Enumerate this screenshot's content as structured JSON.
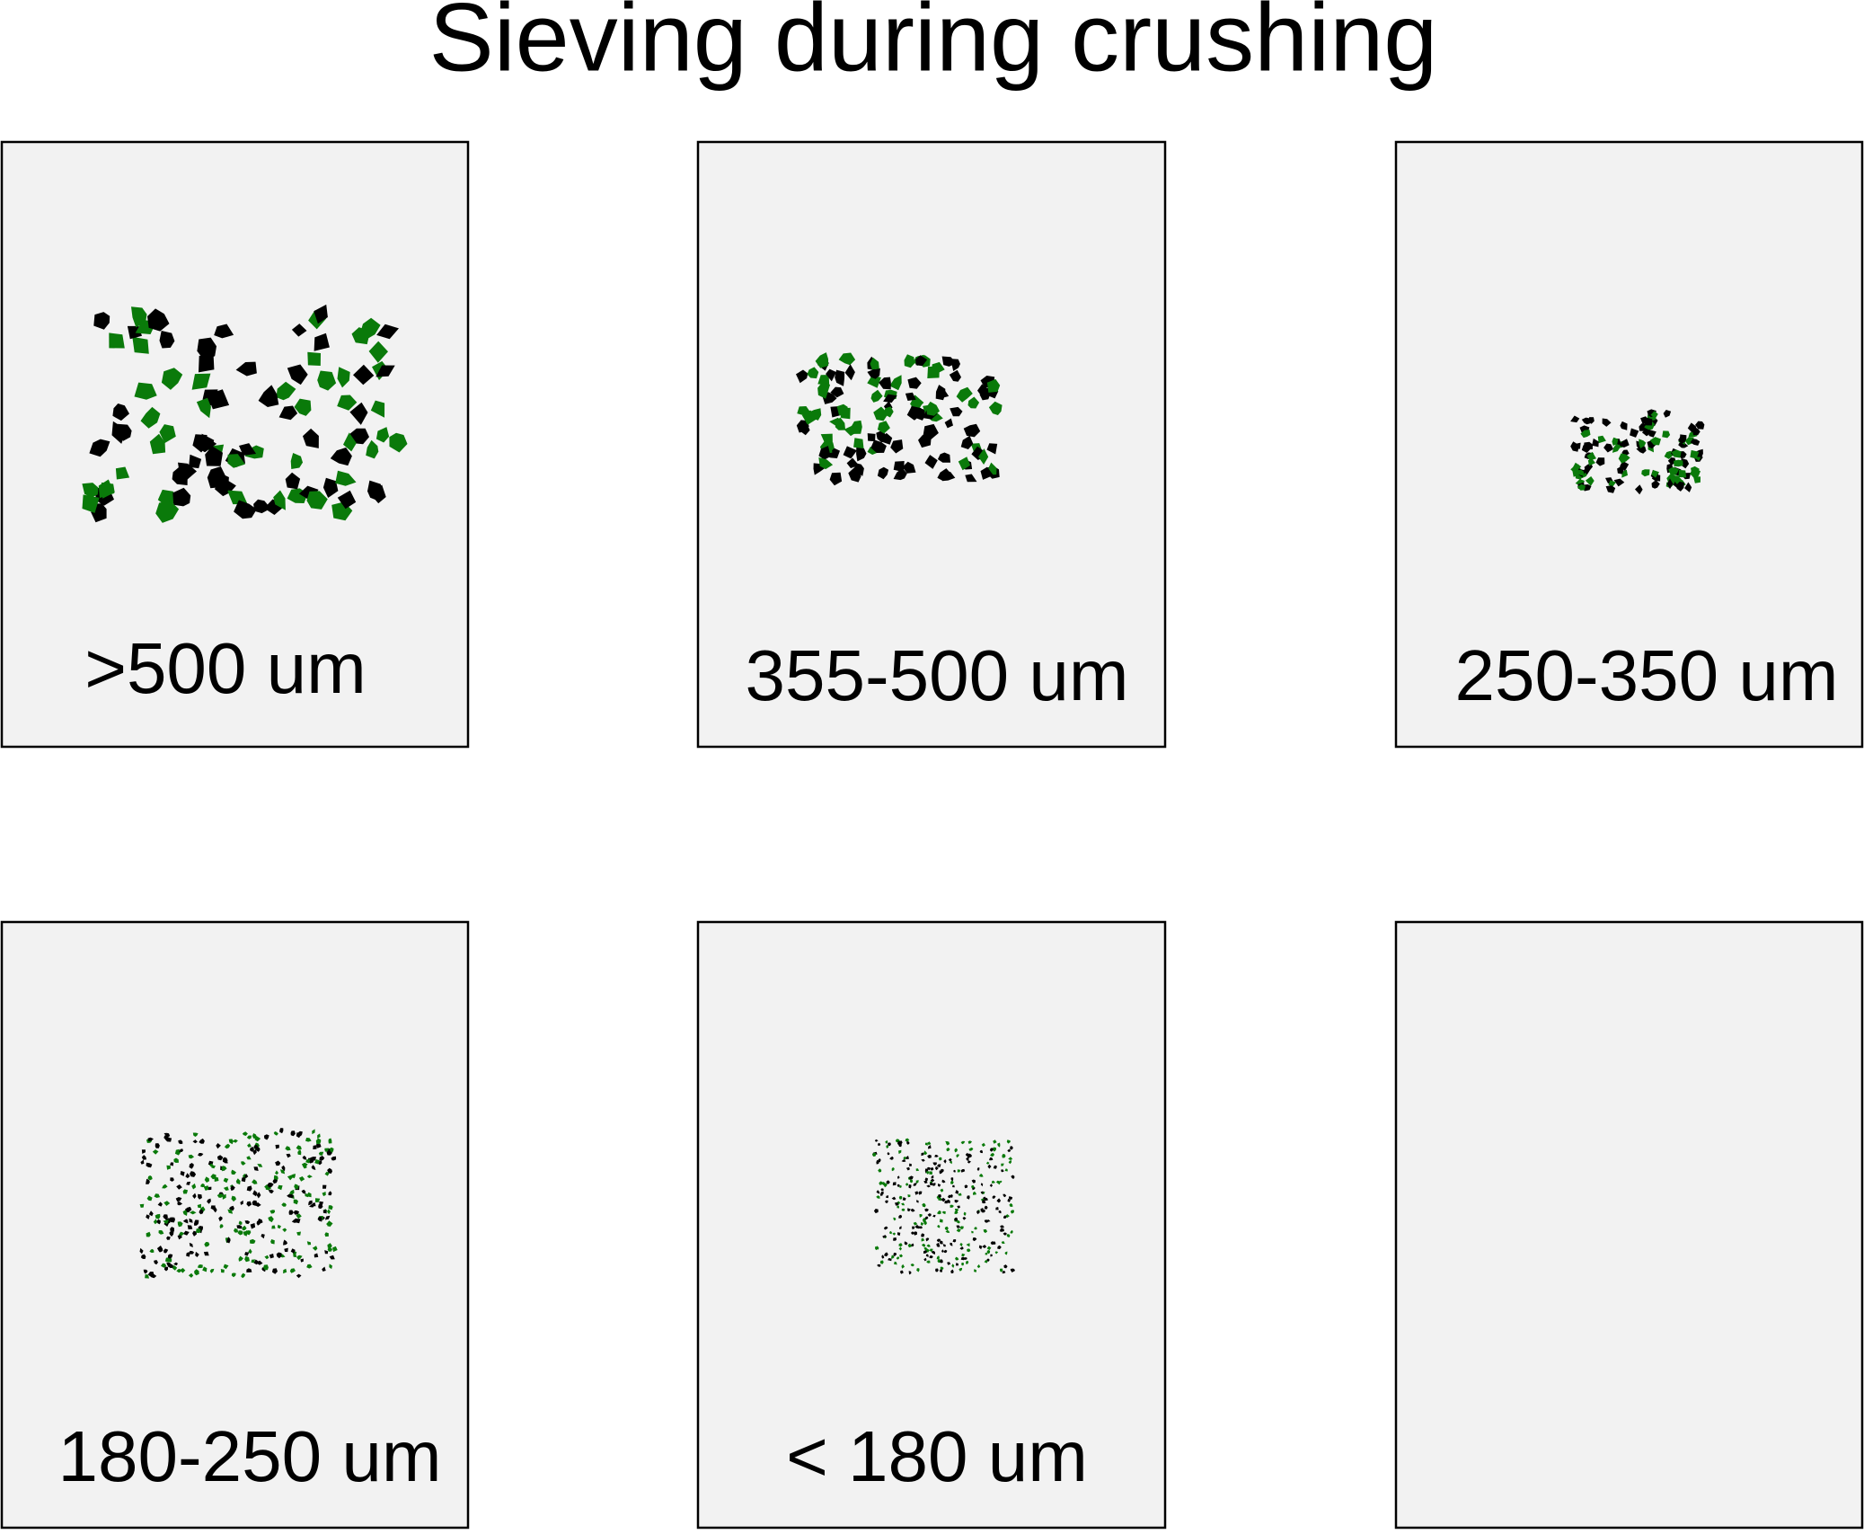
{
  "title": "Sieving during crushing",
  "panels": [
    {
      "label": ">500 um"
    },
    {
      "label": "355-500 um"
    },
    {
      "label": "250-350 um"
    },
    {
      "label": "180-250 um"
    },
    {
      "label": "< 180 um"
    }
  ]
}
